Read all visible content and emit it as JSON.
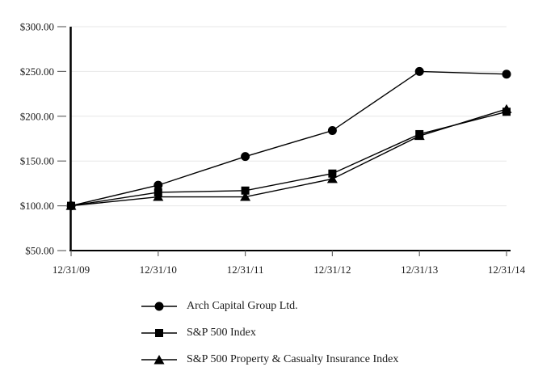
{
  "chart_data": {
    "type": "line",
    "title": "",
    "xlabel": "",
    "ylabel": "",
    "x": [
      "12/31/09",
      "12/31/10",
      "12/31/11",
      "12/31/12",
      "12/31/13",
      "12/31/14"
    ],
    "series": [
      {
        "name": "Arch Capital Group Ltd.",
        "marker": "circle",
        "values": [
          100,
          123,
          155,
          184,
          250,
          247
        ]
      },
      {
        "name": "S&P 500 Index",
        "marker": "square",
        "values": [
          100,
          115,
          117,
          136,
          180,
          205
        ]
      },
      {
        "name": "S&P 500 Property & Casualty Insurance Index",
        "marker": "triangle",
        "values": [
          100,
          110,
          110,
          130,
          178,
          208
        ]
      }
    ],
    "ylim": [
      50,
      300
    ],
    "yticks": [
      {
        "value": 300,
        "label": "$300.00"
      },
      {
        "value": 250,
        "label": "$250.00"
      },
      {
        "value": 200,
        "label": "$200.00"
      },
      {
        "value": 150,
        "label": "$150.00"
      },
      {
        "value": 100,
        "label": "$100.00"
      },
      {
        "value": 50,
        "label": "$50.00"
      }
    ],
    "grid": true,
    "legend_position": "bottom",
    "colors": {
      "series": "#000000",
      "grid": "#e7e7e7",
      "axis": "#000000",
      "tick": "#666666",
      "background": "#ffffff"
    }
  }
}
